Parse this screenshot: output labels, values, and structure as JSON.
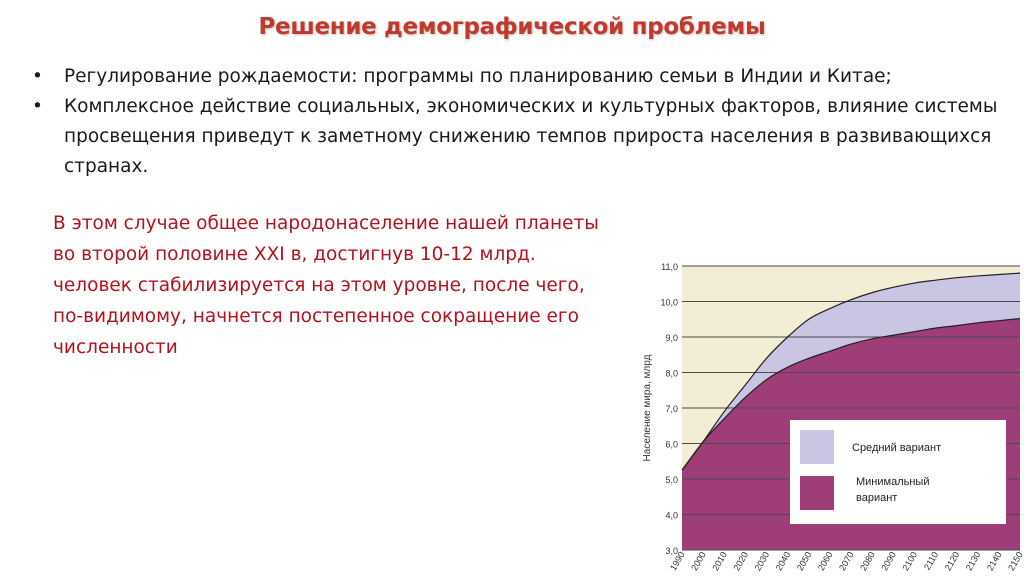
{
  "slide": {
    "title": "Решение демографической проблемы",
    "bullets": [
      {
        "marker": "•",
        "text": "Регулирование рождаемости: программы по планированию семьи в Индии и Китае;"
      },
      {
        "marker": "•",
        "text": "Комплексное действие социальных, экономических и культурных факторов, влияние системы просвещения приведут к заметному снижению темпов прироста населения в развивающихся странах."
      }
    ],
    "paragraph": "В этом случае общее народонаселение нашей планеты во второй половине XXI в, достигнув 10-12 млрд. человек стабилизируется на этом уровне, после чего, по-видимому, начнется постепенное сокращение его численности"
  },
  "chart_data": {
    "type": "area",
    "ylabel": "Население мира, млрд",
    "xlabel": "",
    "ylim": [
      3.0,
      11.0
    ],
    "xlim": [
      1990,
      2150
    ],
    "yticks": [
      "3,0",
      "4,0",
      "5,0",
      "6,0",
      "7,0",
      "8,0",
      "9,0",
      "10,0",
      "11,0"
    ],
    "xticks": [
      "1990",
      "2000",
      "2010",
      "2020",
      "2030",
      "2040",
      "2050",
      "2060",
      "2070",
      "2080",
      "2090",
      "2100",
      "2110",
      "2120",
      "2130",
      "2140",
      "2150"
    ],
    "grid": "horizontal",
    "legend_position": "lower-right",
    "colors": {
      "medium": "#c9c5e2",
      "minimal": "#9e3d78",
      "background": "#f3edd6",
      "grid": "#4a4a4a"
    },
    "series": [
      {
        "name": "Средний вариант",
        "key": "medium",
        "x": [
          1990,
          2000,
          2010,
          2020,
          2030,
          2040,
          2050,
          2060,
          2070,
          2080,
          2090,
          2100,
          2110,
          2120,
          2130,
          2140,
          2150
        ],
        "values": [
          5.25,
          6.05,
          6.9,
          7.65,
          8.4,
          9.0,
          9.5,
          9.8,
          10.05,
          10.25,
          10.4,
          10.52,
          10.6,
          10.67,
          10.72,
          10.76,
          10.8
        ]
      },
      {
        "name": "Минимальный вариант",
        "key": "minimal",
        "x": [
          1990,
          2000,
          2010,
          2020,
          2030,
          2040,
          2050,
          2060,
          2070,
          2080,
          2090,
          2100,
          2110,
          2120,
          2130,
          2140,
          2150
        ],
        "values": [
          5.25,
          6.05,
          6.7,
          7.3,
          7.8,
          8.15,
          8.4,
          8.6,
          8.8,
          8.95,
          9.05,
          9.15,
          9.25,
          9.32,
          9.4,
          9.46,
          9.52
        ]
      }
    ],
    "legend": [
      "Средний вариант",
      "Минимальный вариант"
    ]
  }
}
